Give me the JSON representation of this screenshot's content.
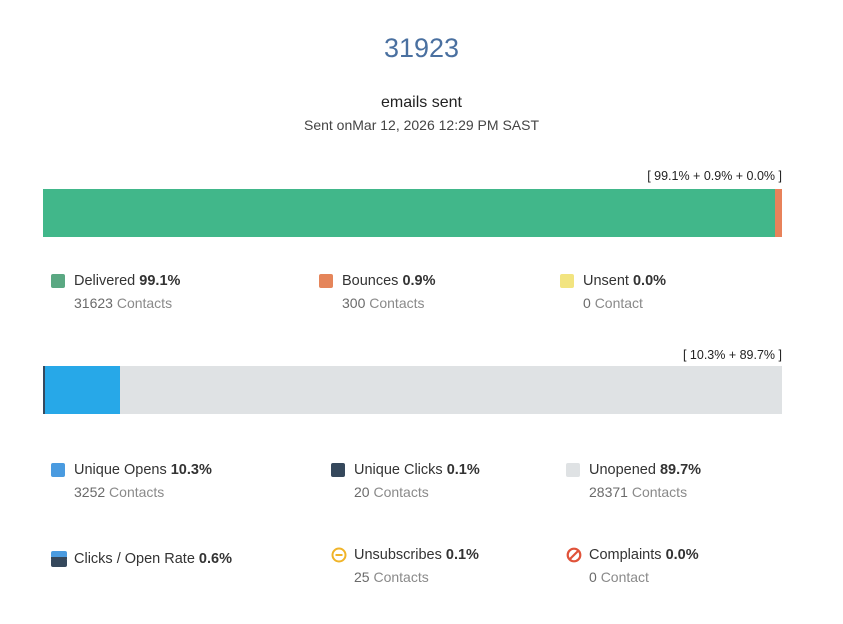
{
  "header": {
    "total": "31923",
    "caption": "emails sent",
    "sent_prefix": "Sent on",
    "sent_date": "Mar 12, 2026 12:29 PM SAST"
  },
  "delivery": {
    "summary": "[ 99.1% + 0.9% + 0.0% ]",
    "segments": [
      {
        "name": "Delivered",
        "percent_value": 99.1,
        "color": "#41b78a"
      },
      {
        "name": "Bounces",
        "percent_value": 0.9,
        "color": "#e8825a"
      },
      {
        "name": "Unsent",
        "percent_value": 0.0,
        "color": "#f0e07a"
      }
    ],
    "legend": [
      {
        "label": "Delivered",
        "percent": "99.1%",
        "count": "31623",
        "unit": "Contacts",
        "color": "#5aa882"
      },
      {
        "label": "Bounces",
        "percent": "0.9%",
        "count": "300",
        "unit": "Contacts",
        "color": "#e5855a"
      },
      {
        "label": "Unsent",
        "percent": "0.0%",
        "count": "0",
        "unit": "Contact",
        "color": "#f2e480"
      }
    ]
  },
  "engagement": {
    "summary": "[ 10.3% + 89.7% ]",
    "segments": [
      {
        "name": "Unique Clicks",
        "percent_value": 0.1,
        "color": "#354a5f"
      },
      {
        "name": "Unique Opens",
        "percent_value": 10.2,
        "color": "#27a8e8"
      },
      {
        "name": "Unopened",
        "percent_value": 89.7,
        "color": "#dfe2e4"
      }
    ],
    "legend": [
      {
        "label": "Unique Opens",
        "percent": "10.3%",
        "count": "3252",
        "unit": "Contacts",
        "color": "#4a9be0"
      },
      {
        "label": "Unique Clicks",
        "percent": "0.1%",
        "count": "20",
        "unit": "Contacts",
        "color": "#35485c"
      },
      {
        "label": "Unopened",
        "percent": "89.7%",
        "count": "28371",
        "unit": "Contacts",
        "color": "#dfe2e4"
      }
    ]
  },
  "extra": [
    {
      "label": "Clicks / Open Rate",
      "percent": "0.6%",
      "icon": "split-square-icon",
      "color_top": "#4a9be0",
      "color_bottom": "#35485c"
    },
    {
      "label": "Unsubscribes",
      "percent": "0.1%",
      "count": "25",
      "unit": "Contacts",
      "icon": "minus-circle-icon",
      "color": "#f0b429"
    },
    {
      "label": "Complaints",
      "percent": "0.0%",
      "count": "0",
      "unit": "Contact",
      "icon": "ban-icon",
      "color": "#e0533a"
    }
  ]
}
